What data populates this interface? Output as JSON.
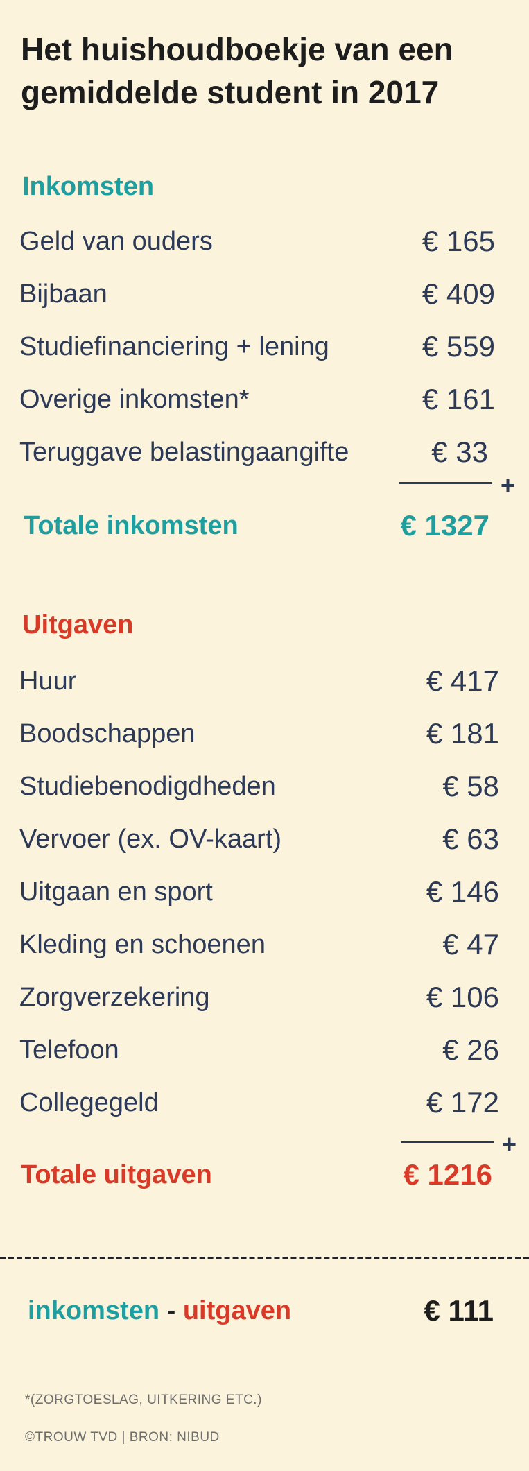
{
  "title_line1": "Het huishoudboekje van een",
  "title_line2": "gemiddelde student in 2017",
  "income": {
    "heading": "Inkomsten",
    "items": [
      {
        "label": "Geld van ouders",
        "amount": "€ 165"
      },
      {
        "label": "Bijbaan",
        "amount": "€ 409"
      },
      {
        "label": "Studiefinanciering + lening",
        "amount": "€ 559"
      },
      {
        "label": "Overige inkomsten*",
        "amount": "€ 161"
      },
      {
        "label": "Teruggave belastingaangifte",
        "amount": "€ 33"
      }
    ],
    "plus": "+",
    "total_label": "Totale inkomsten",
    "total_amount": "€ 1327"
  },
  "expenses": {
    "heading": "Uitgaven",
    "items": [
      {
        "label": "Huur",
        "amount": "€ 417"
      },
      {
        "label": "Boodschappen",
        "amount": "€ 181"
      },
      {
        "label": "Studiebenodigdheden",
        "amount": "€ 58"
      },
      {
        "label": "Vervoer (ex. OV-kaart)",
        "amount": "€ 63"
      },
      {
        "label": "Uitgaan en sport",
        "amount": "€ 146"
      },
      {
        "label": "Kleding en schoenen",
        "amount": "€ 47"
      },
      {
        "label": "Zorgverzekering",
        "amount": "€ 106"
      },
      {
        "label": "Telefoon",
        "amount": "€ 26"
      },
      {
        "label": "Collegegeld",
        "amount": "€ 172"
      }
    ],
    "plus": "+",
    "total_label": "Totale uitgaven",
    "total_amount": "€ 1216"
  },
  "difference": {
    "left": "inkomsten",
    "sep": " - ",
    "right": "uitgaven",
    "amount": "€ 111"
  },
  "footnote": "*(ZORGTOESLAG, UITKERING ETC.)",
  "credit": "©TROUW TVD | BRON: NIBUD",
  "colors": {
    "background": "#fbf3dc",
    "teal": "#1f9ea0",
    "red": "#d93a28",
    "navy": "#2c3a57"
  }
}
